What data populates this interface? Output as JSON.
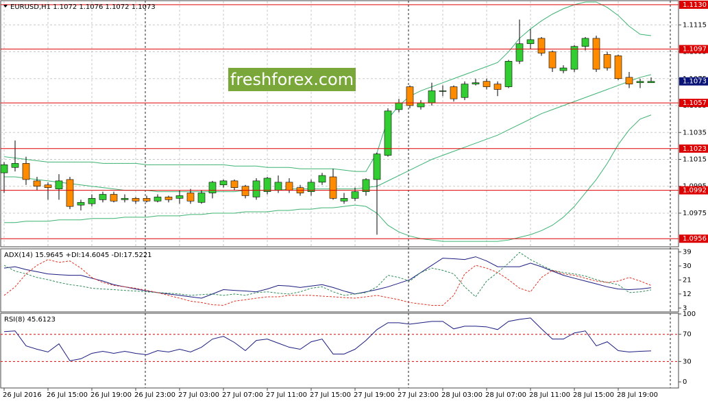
{
  "chart_data": [
    {
      "type": "candlestick",
      "title": "EURUSD,H1  1.1072 1.1076 1.1072 1.1073",
      "watermark": "freshforex.com",
      "categories": [
        "26 Jul 2016",
        null,
        null,
        null,
        "26 Jul 15:00",
        null,
        null,
        null,
        "26 Jul 19:00",
        null,
        null,
        null,
        "26 Jul 23:00",
        null,
        null,
        null,
        "27 Jul 03:00",
        null,
        null,
        null,
        "27 Jul 07:00",
        null,
        null,
        null,
        "27 Jul 11:00",
        null,
        null,
        null,
        "27 Jul 15:00",
        null,
        null,
        null,
        "27 Jul 19:00",
        null,
        null,
        null,
        "27 Jul 23:00",
        null,
        null,
        null,
        "28 Jul 03:00",
        null,
        null,
        null,
        "28 Jul 07:00",
        null,
        null,
        null,
        "28 Jul 11:00",
        null,
        null,
        null,
        "28 Jul 15:00",
        null,
        null,
        null,
        "28 Jul 19:00",
        null,
        null,
        null
      ],
      "open": [
        1.1005,
        1.1009,
        1.1012,
        1.0999,
        1.0996,
        1.0993,
        1.1,
        1.0981,
        1.0982,
        1.0985,
        1.0989,
        1.0985,
        1.0986,
        1.0986,
        1.0984,
        1.0987,
        1.0986,
        1.099,
        1.0983,
        1.099,
        1.0996,
        1.0999,
        1.0995,
        1.0987,
        1.0991,
        1.0992,
        1.0998,
        1.0994,
        1.0991,
        1.0998,
        1.1002,
        1.0984,
        1.0986,
        1.0991,
        1.1,
        1.1018,
        1.1052,
        1.1069,
        1.1054,
        1.1057,
        1.1066,
        1.1069,
        1.1061,
        1.1071,
        1.1073,
        1.1071,
        1.1069,
        1.1088,
        1.1101,
        1.1105,
        1.1095,
        1.1081,
        1.1082,
        1.1099,
        1.1105,
        1.1093,
        1.1092,
        1.1076,
        1.1072,
        1.1072
      ],
      "high": [
        1.1013,
        1.1029,
        1.1017,
        1.1002,
        1.0998,
        1.1004,
        1.1002,
        1.0985,
        1.0989,
        1.0991,
        1.0991,
        1.0989,
        1.0987,
        1.0988,
        1.0989,
        1.0988,
        1.0992,
        1.0993,
        1.0992,
        1.0999,
        1.1,
        1.1,
        1.0996,
        1.1001,
        1.1002,
        1.1003,
        1.1001,
        1.0996,
        1.1,
        1.1005,
        1.1008,
        1.099,
        1.0994,
        1.1001,
        1.102,
        1.1053,
        1.106,
        1.107,
        1.1059,
        1.1072,
        1.107,
        1.107,
        1.1073,
        1.1075,
        1.1075,
        1.1073,
        1.1089,
        1.1119,
        1.1112,
        1.1106,
        1.1096,
        1.1085,
        1.11,
        1.1106,
        1.1107,
        1.1095,
        1.1093,
        1.108,
        1.1075,
        1.1076
      ],
      "low": [
        1.099,
        1.1006,
        1.0996,
        1.0992,
        1.0985,
        1.0985,
        1.0978,
        1.0977,
        1.098,
        1.0983,
        1.0983,
        1.0983,
        1.0982,
        1.0983,
        1.0983,
        1.0983,
        1.0982,
        1.0982,
        1.0982,
        1.0986,
        1.0994,
        1.0992,
        1.0986,
        1.0985,
        1.0989,
        1.099,
        1.099,
        1.0988,
        1.0988,
        1.0996,
        1.0985,
        1.0982,
        1.0984,
        1.0988,
        1.0959,
        1.1017,
        1.105,
        1.1053,
        1.1052,
        1.1055,
        1.1062,
        1.1058,
        1.1059,
        1.107,
        1.1067,
        1.1062,
        1.1068,
        1.1086,
        1.1097,
        1.1092,
        1.108,
        1.1079,
        1.108,
        1.1096,
        1.108,
        1.1081,
        1.1074,
        1.1068,
        1.1068,
        1.1072
      ],
      "close": [
        1.1011,
        1.1012,
        1.1,
        1.0995,
        1.0994,
        1.0999,
        1.098,
        1.0983,
        1.0986,
        1.0989,
        1.0984,
        1.0986,
        1.0984,
        1.0984,
        1.0987,
        1.0985,
        1.0988,
        1.0984,
        1.099,
        1.0998,
        1.0999,
        1.0994,
        1.0988,
        1.0999,
        1.1001,
        1.0998,
        1.0992,
        1.099,
        1.0998,
        1.1003,
        1.0986,
        1.0986,
        1.0991,
        1.1,
        1.1019,
        1.1051,
        1.1057,
        1.1055,
        1.1057,
        1.1066,
        1.1066,
        1.106,
        1.1071,
        1.1072,
        1.1069,
        1.1067,
        1.1088,
        1.1101,
        1.1104,
        1.1094,
        1.1083,
        1.1083,
        1.1099,
        1.1105,
        1.1082,
        1.1083,
        1.1075,
        1.1071,
        1.1073,
        1.1073
      ],
      "up_color": "#32cd32",
      "down_color": "#ff8c00",
      "bands": [
        {
          "color": "#3cb371",
          "values": [
            1.1017,
            1.1016,
            1.1015,
            1.1014,
            1.1013,
            1.1013,
            1.1013,
            1.1013,
            1.1013,
            1.1012,
            1.1012,
            1.1012,
            1.1012,
            1.1011,
            1.1011,
            1.1011,
            1.1011,
            1.1011,
            1.1011,
            1.1011,
            1.1011,
            1.101,
            1.101,
            1.101,
            1.1009,
            1.1009,
            1.1009,
            1.1008,
            1.1008,
            1.1008,
            1.1008,
            1.1007,
            1.1006,
            1.1006,
            1.102,
            1.1045,
            1.1055,
            1.1062,
            1.1066,
            1.1069,
            1.1072,
            1.1075,
            1.1078,
            1.1081,
            1.1084,
            1.1087,
            1.1095,
            1.1105,
            1.1112,
            1.1118,
            1.1123,
            1.1127,
            1.113,
            1.1132,
            1.1132,
            1.1128,
            1.1122,
            1.1114,
            1.1108,
            1.1107
          ]
        },
        {
          "color": "#3cb371",
          "values": [
            1.1002,
            1.1002,
            1.1001,
            1.1,
            1.0999,
            1.0998,
            1.0997,
            1.0996,
            1.0995,
            1.0994,
            1.0993,
            1.0992,
            1.0992,
            1.0992,
            1.0991,
            1.0991,
            1.0991,
            1.0991,
            1.0991,
            1.0991,
            1.0991,
            1.0991,
            1.0992,
            1.0992,
            1.0992,
            1.0992,
            1.0993,
            1.0993,
            1.0993,
            1.0993,
            1.0993,
            1.0993,
            1.0993,
            1.0994,
            1.0995,
            1.0999,
            1.1003,
            1.1007,
            1.1011,
            1.1015,
            1.1018,
            1.1021,
            1.1024,
            1.1027,
            1.103,
            1.1033,
            1.1037,
            1.1041,
            1.1045,
            1.1049,
            1.1052,
            1.1055,
            1.1058,
            1.1061,
            1.1064,
            1.1067,
            1.107,
            1.1073,
            1.1076,
            1.1078
          ]
        },
        {
          "color": "#3cb371",
          "values": [
            1.0968,
            1.0968,
            1.0969,
            1.0969,
            1.0969,
            1.097,
            1.097,
            1.097,
            1.0971,
            1.0971,
            1.0971,
            1.0972,
            1.0972,
            1.0972,
            1.0973,
            1.0973,
            1.0973,
            1.0974,
            1.0974,
            1.0975,
            1.0975,
            1.0975,
            1.0976,
            1.0976,
            1.0976,
            1.0977,
            1.0977,
            1.0978,
            1.0978,
            1.0979,
            1.0979,
            1.098,
            1.0981,
            1.098,
            1.0975,
            1.0966,
            1.0961,
            1.0958,
            1.0956,
            1.0955,
            1.0954,
            1.0954,
            1.0954,
            1.0954,
            1.0954,
            1.0954,
            1.0955,
            1.0957,
            1.0959,
            1.0962,
            1.0966,
            1.0972,
            1.098,
            1.099,
            1.1,
            1.1012,
            1.1026,
            1.1037,
            1.1045,
            1.1048
          ]
        }
      ],
      "ylim": [
        1.095,
        1.1133
      ],
      "yticks": [
        1.1115,
        1.1095,
        1.1075,
        1.1055,
        1.1035,
        1.1015,
        1.0995,
        1.0975
      ],
      "grid": true,
      "levels": [
        {
          "value": 1.113,
          "label": "1.1130"
        },
        1.1097,
        1.1057,
        1.1023,
        1.0992,
        1.0956
      ],
      "level_color": "#dd0000",
      "current_price": 1.1073,
      "current_color": "#0a1478"
    },
    {
      "type": "line",
      "title": "ADX(14) 15.9645 +DI:14.6045 -DI:17.5221",
      "series": [
        {
          "color": "#1a1a80",
          "values": [
            28.6,
            29.5,
            27.7,
            26.3,
            24.9,
            24.4,
            24.0,
            24.0,
            22.1,
            20.3,
            18.0,
            16.6,
            15.2,
            13.9,
            12.9,
            12.0,
            11.1,
            10.2,
            9.3,
            12.0,
            14.8,
            14.3,
            13.9,
            13.4,
            15.2,
            17.5,
            17.1,
            16.2,
            17.1,
            18.0,
            16.2,
            13.9,
            12.0,
            13.4,
            14.8,
            16.6,
            18.9,
            21.2,
            25.8,
            30.4,
            35.0,
            34.6,
            34.1,
            35.9,
            33.2,
            29.5,
            29.5,
            29.5,
            31.8,
            29.5,
            26.7,
            24.0,
            22.1,
            20.3,
            18.5,
            16.6,
            15.2,
            14.8,
            15.2,
            16.0
          ]
        },
        {
          "color": "#2e8b57",
          "dash": true,
          "values": [
            30.4,
            26.7,
            24.9,
            22.6,
            21.2,
            19.4,
            18.0,
            17.1,
            15.7,
            15.2,
            14.8,
            14.3,
            13.9,
            13.4,
            12.9,
            12.5,
            12.0,
            11.1,
            11.6,
            12.0,
            11.1,
            12.0,
            11.1,
            12.9,
            13.4,
            12.5,
            12.0,
            13.4,
            15.7,
            16.6,
            13.4,
            11.1,
            12.0,
            12.9,
            16.6,
            24.0,
            22.6,
            20.3,
            25.8,
            28.6,
            27.2,
            24.9,
            16.6,
            10.2,
            20.3,
            25.8,
            31.8,
            38.7,
            34.1,
            30.4,
            27.2,
            25.8,
            24.9,
            23.5,
            21.2,
            19.4,
            18.0,
            12.9,
            13.4,
            14.6
          ]
        },
        {
          "color": "#e03020",
          "dash": true,
          "values": [
            11.1,
            16.6,
            24.9,
            30.4,
            34.1,
            32.3,
            33.2,
            28.6,
            22.6,
            19.4,
            17.5,
            16.6,
            15.7,
            14.3,
            12.9,
            11.1,
            9.3,
            7.4,
            6.5,
            5.1,
            4.7,
            7.4,
            8.3,
            9.3,
            10.2,
            10.2,
            11.1,
            11.1,
            11.1,
            10.6,
            10.2,
            9.7,
            9.3,
            10.2,
            11.1,
            9.7,
            8.3,
            6.5,
            5.6,
            4.7,
            4.7,
            11.1,
            24.9,
            30.4,
            28.6,
            25.8,
            21.2,
            15.7,
            13.4,
            22.6,
            27.2,
            24.9,
            24.0,
            22.1,
            20.3,
            19.4,
            20.3,
            22.6,
            20.3,
            17.5
          ]
        }
      ],
      "ylim": [
        0.5,
        41
      ],
      "yticks": [
        39,
        30,
        21,
        12,
        3
      ]
    },
    {
      "type": "line",
      "title": "RSI(8) 45.6123",
      "series": [
        {
          "color": "#1a1a80",
          "values": [
            74,
            75,
            53,
            48,
            44,
            56,
            31,
            34,
            42,
            45,
            42,
            45,
            42,
            40,
            46,
            44,
            48,
            44,
            51,
            63,
            67,
            58,
            46,
            61,
            63,
            57,
            51,
            48,
            59,
            63,
            41,
            41,
            48,
            61,
            77,
            87,
            87,
            85,
            87,
            89,
            89,
            78,
            82,
            82,
            81,
            77,
            89,
            92,
            94,
            78,
            63,
            63,
            72,
            75,
            53,
            59,
            46,
            44,
            45,
            45.6
          ]
        }
      ],
      "ylim": [
        -9,
        101
      ],
      "yticks": [
        100,
        70,
        30,
        0
      ],
      "levels": [
        70,
        30
      ],
      "level_color": "#dd0000"
    }
  ]
}
